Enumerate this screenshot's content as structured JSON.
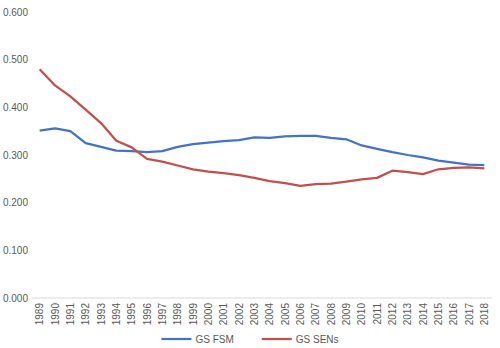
{
  "chart_data": {
    "type": "line",
    "categories": [
      "1989",
      "1990",
      "1991",
      "1992",
      "1993",
      "1994",
      "1995",
      "1996",
      "1997",
      "1998",
      "1999",
      "2000",
      "2001",
      "2002",
      "2003",
      "2004",
      "2005",
      "2006",
      "2007",
      "2008",
      "2009",
      "2010",
      "2011",
      "2012",
      "2013",
      "2014",
      "2015",
      "2016",
      "2017",
      "2018"
    ],
    "series": [
      {
        "name": "GS FSM",
        "color": "#4472c4",
        "values": [
          0.351,
          0.356,
          0.35,
          0.325,
          0.317,
          0.309,
          0.308,
          0.306,
          0.308,
          0.317,
          0.323,
          0.326,
          0.329,
          0.331,
          0.337,
          0.336,
          0.339,
          0.34,
          0.34,
          0.336,
          0.333,
          0.32,
          0.313,
          0.306,
          0.3,
          0.295,
          0.288,
          0.284,
          0.28,
          0.279
        ]
      },
      {
        "name": "GS SENs",
        "color": "#c0504d",
        "values": [
          0.48,
          0.446,
          0.423,
          0.395,
          0.367,
          0.33,
          0.316,
          0.292,
          0.286,
          0.278,
          0.27,
          0.265,
          0.262,
          0.258,
          0.252,
          0.245,
          0.241,
          0.235,
          0.239,
          0.24,
          0.244,
          0.249,
          0.252,
          0.267,
          0.264,
          0.26,
          0.27,
          0.273,
          0.274,
          0.272
        ]
      }
    ],
    "ylim": [
      0,
      0.6
    ],
    "yticks": [
      {
        "value": 0,
        "label": "0.000"
      },
      {
        "value": 0.1,
        "label": "0.100"
      },
      {
        "value": 0.2,
        "label": "0.200"
      },
      {
        "value": 0.3,
        "label": "0.300"
      },
      {
        "value": 0.4,
        "label": "0.400"
      },
      {
        "value": 0.5,
        "label": "0.500"
      },
      {
        "value": 0.6,
        "label": "0.600"
      }
    ],
    "grid": false,
    "legend": "bottom"
  }
}
